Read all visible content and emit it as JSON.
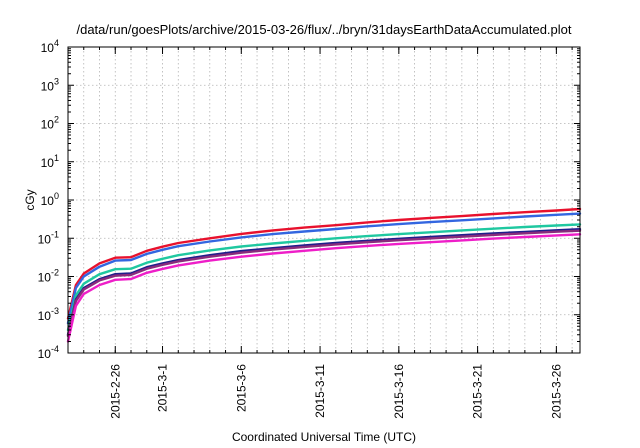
{
  "chart_data": {
    "type": "line",
    "title": "/data/run/goesPlots/archive/2015-03-26/flux/../bryn/31daysEarthDataAccumulated.plot",
    "xlabel": "Coordinated Universal Time (UTC)",
    "ylabel": "cGy",
    "y_scale": "log",
    "ylim": [
      0.0001,
      10000
    ],
    "y_ticks": [
      {
        "value": 0.0001,
        "base": "10",
        "exp": "-4"
      },
      {
        "value": 0.001,
        "base": "10",
        "exp": "-3"
      },
      {
        "value": 0.01,
        "base": "10",
        "exp": "-2"
      },
      {
        "value": 0.1,
        "base": "10",
        "exp": "-1"
      },
      {
        "value": 1,
        "base": "10",
        "exp": "0"
      },
      {
        "value": 10,
        "base": "10",
        "exp": "1"
      },
      {
        "value": 100,
        "base": "10",
        "exp": "2"
      },
      {
        "value": 1000,
        "base": "10",
        "exp": "3"
      },
      {
        "value": 10000,
        "base": "10",
        "exp": "4"
      }
    ],
    "xlim": [
      "2015-02-23",
      "2015-03-27T12:00"
    ],
    "x_ticks": [
      "2015-2-26",
      "2015-3-1",
      "2015-3-6",
      "2015-3-11",
      "2015-3-16",
      "2015-3-21",
      "2015-3-26"
    ],
    "x_tick_dates": [
      "2015-02-26",
      "2015-03-01",
      "2015-03-06",
      "2015-03-11",
      "2015-03-16",
      "2015-03-21",
      "2015-03-26"
    ],
    "grid": true,
    "series": [
      {
        "color": "#e8112d",
        "points": [
          [
            "2015-02-23",
            0.0008
          ],
          [
            "2015-02-23T12:00",
            0.006
          ],
          [
            "2015-02-24",
            0.012
          ],
          [
            "2015-02-25",
            0.022
          ],
          [
            "2015-02-26",
            0.031
          ],
          [
            "2015-02-27",
            0.032
          ],
          [
            "2015-02-28",
            0.047
          ],
          [
            "2015-03-01",
            0.06
          ],
          [
            "2015-03-02",
            0.075
          ],
          [
            "2015-03-04",
            0.1
          ],
          [
            "2015-03-06",
            0.13
          ],
          [
            "2015-03-08",
            0.16
          ],
          [
            "2015-03-10",
            0.19
          ],
          [
            "2015-03-12",
            0.22
          ],
          [
            "2015-03-14",
            0.26
          ],
          [
            "2015-03-16",
            0.3
          ],
          [
            "2015-03-18",
            0.34
          ],
          [
            "2015-03-20",
            0.38
          ],
          [
            "2015-03-22",
            0.43
          ],
          [
            "2015-03-24",
            0.48
          ],
          [
            "2015-03-26",
            0.53
          ],
          [
            "2015-03-27T12:00",
            0.58
          ]
        ]
      },
      {
        "color": "#3366e0",
        "points": [
          [
            "2015-02-23",
            0.0006
          ],
          [
            "2015-02-23T12:00",
            0.005
          ],
          [
            "2015-02-24",
            0.01
          ],
          [
            "2015-02-25",
            0.018
          ],
          [
            "2015-02-26",
            0.026
          ],
          [
            "2015-02-27",
            0.027
          ],
          [
            "2015-02-28",
            0.039
          ],
          [
            "2015-03-01",
            0.05
          ],
          [
            "2015-03-02",
            0.062
          ],
          [
            "2015-03-04",
            0.082
          ],
          [
            "2015-03-06",
            0.105
          ],
          [
            "2015-03-08",
            0.128
          ],
          [
            "2015-03-10",
            0.15
          ],
          [
            "2015-03-12",
            0.175
          ],
          [
            "2015-03-14",
            0.205
          ],
          [
            "2015-03-16",
            0.235
          ],
          [
            "2015-03-18",
            0.265
          ],
          [
            "2015-03-20",
            0.295
          ],
          [
            "2015-03-22",
            0.33
          ],
          [
            "2015-03-24",
            0.37
          ],
          [
            "2015-03-26",
            0.41
          ],
          [
            "2015-03-27T12:00",
            0.44
          ]
        ]
      },
      {
        "color": "#1fc8a0",
        "points": [
          [
            "2015-02-23",
            0.0004
          ],
          [
            "2015-02-23T12:00",
            0.0032
          ],
          [
            "2015-02-24",
            0.0065
          ],
          [
            "2015-02-25",
            0.0115
          ],
          [
            "2015-02-26",
            0.0155
          ],
          [
            "2015-02-27",
            0.016
          ],
          [
            "2015-02-28",
            0.023
          ],
          [
            "2015-03-01",
            0.029
          ],
          [
            "2015-03-02",
            0.036
          ],
          [
            "2015-03-04",
            0.048
          ],
          [
            "2015-03-06",
            0.061
          ],
          [
            "2015-03-08",
            0.073
          ],
          [
            "2015-03-10",
            0.086
          ],
          [
            "2015-03-12",
            0.1
          ],
          [
            "2015-03-14",
            0.114
          ],
          [
            "2015-03-16",
            0.128
          ],
          [
            "2015-03-18",
            0.143
          ],
          [
            "2015-03-20",
            0.16
          ],
          [
            "2015-03-22",
            0.178
          ],
          [
            "2015-03-24",
            0.197
          ],
          [
            "2015-03-26",
            0.216
          ],
          [
            "2015-03-27T12:00",
            0.23
          ]
        ]
      },
      {
        "color": "#1e1e8c",
        "points": [
          [
            "2015-02-23",
            0.0003
          ],
          [
            "2015-02-23T12:00",
            0.0025
          ],
          [
            "2015-02-24",
            0.005
          ],
          [
            "2015-02-25",
            0.0085
          ],
          [
            "2015-02-26",
            0.0115
          ],
          [
            "2015-02-27",
            0.012
          ],
          [
            "2015-02-28",
            0.0175
          ],
          [
            "2015-03-01",
            0.022
          ],
          [
            "2015-03-02",
            0.027
          ],
          [
            "2015-03-04",
            0.036
          ],
          [
            "2015-03-06",
            0.046
          ],
          [
            "2015-03-08",
            0.055
          ],
          [
            "2015-03-10",
            0.065
          ],
          [
            "2015-03-12",
            0.075
          ],
          [
            "2015-03-14",
            0.086
          ],
          [
            "2015-03-16",
            0.097
          ],
          [
            "2015-03-18",
            0.108
          ],
          [
            "2015-03-20",
            0.12
          ],
          [
            "2015-03-22",
            0.133
          ],
          [
            "2015-03-24",
            0.147
          ],
          [
            "2015-03-26",
            0.161
          ],
          [
            "2015-03-27T12:00",
            0.172
          ]
        ]
      },
      {
        "color": "#8a2b7c",
        "points": [
          [
            "2015-02-23",
            0.00028
          ],
          [
            "2015-02-23T12:00",
            0.0023
          ],
          [
            "2015-02-24",
            0.0046
          ],
          [
            "2015-02-25",
            0.0079
          ],
          [
            "2015-02-26",
            0.0105
          ],
          [
            "2015-02-27",
            0.011
          ],
          [
            "2015-02-28",
            0.016
          ],
          [
            "2015-03-01",
            0.0202
          ],
          [
            "2015-03-02",
            0.0248
          ],
          [
            "2015-03-04",
            0.033
          ],
          [
            "2015-03-06",
            0.042
          ],
          [
            "2015-03-08",
            0.0505
          ],
          [
            "2015-03-10",
            0.0595
          ],
          [
            "2015-03-12",
            0.069
          ],
          [
            "2015-03-14",
            0.079
          ],
          [
            "2015-03-16",
            0.089
          ],
          [
            "2015-03-18",
            0.099
          ],
          [
            "2015-03-20",
            0.11
          ],
          [
            "2015-03-22",
            0.122
          ],
          [
            "2015-03-24",
            0.135
          ],
          [
            "2015-03-26",
            0.148
          ],
          [
            "2015-03-27T12:00",
            0.158
          ]
        ]
      },
      {
        "color": "#ee1ec8",
        "points": [
          [
            "2015-02-23",
            0.0002
          ],
          [
            "2015-02-23T12:00",
            0.0017
          ],
          [
            "2015-02-24",
            0.0035
          ],
          [
            "2015-02-25",
            0.006
          ],
          [
            "2015-02-26",
            0.0082
          ],
          [
            "2015-02-27",
            0.0086
          ],
          [
            "2015-02-28",
            0.0125
          ],
          [
            "2015-03-01",
            0.0158
          ],
          [
            "2015-03-02",
            0.0195
          ],
          [
            "2015-03-04",
            0.026
          ],
          [
            "2015-03-06",
            0.033
          ],
          [
            "2015-03-08",
            0.04
          ],
          [
            "2015-03-10",
            0.047
          ],
          [
            "2015-03-12",
            0.055
          ],
          [
            "2015-03-14",
            0.063
          ],
          [
            "2015-03-16",
            0.071
          ],
          [
            "2015-03-18",
            0.079
          ],
          [
            "2015-03-20",
            0.088
          ],
          [
            "2015-03-22",
            0.098
          ],
          [
            "2015-03-24",
            0.108
          ],
          [
            "2015-03-26",
            0.119
          ],
          [
            "2015-03-27T12:00",
            0.127
          ]
        ]
      }
    ]
  }
}
